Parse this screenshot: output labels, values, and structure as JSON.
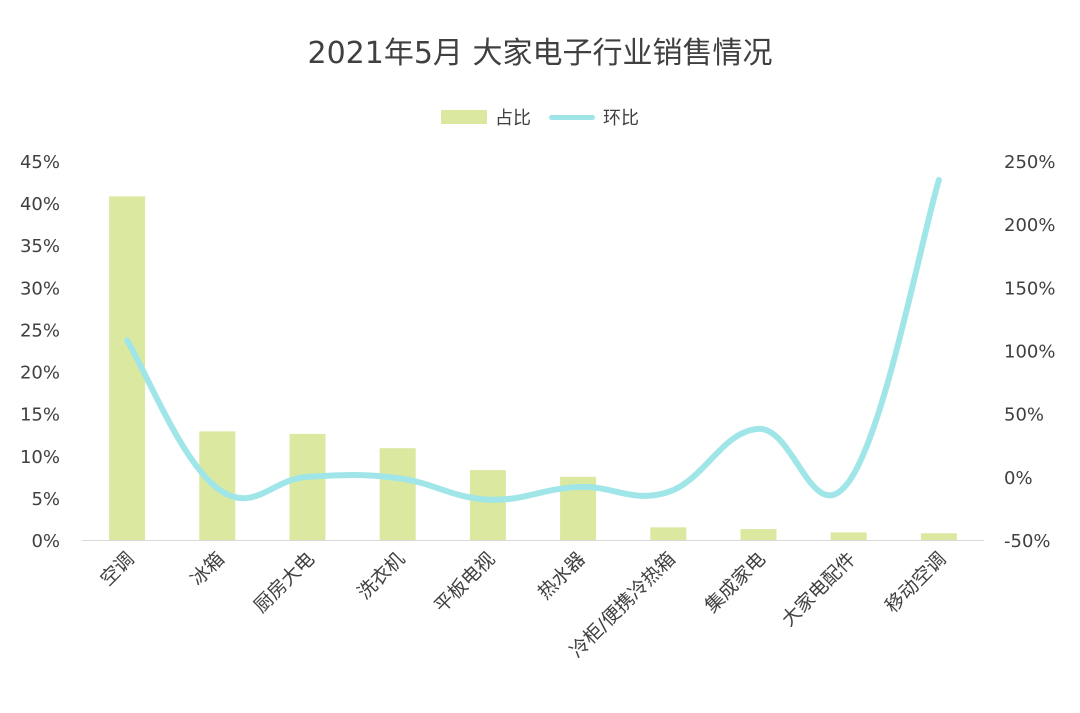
{
  "chart_data": {
    "type": "bar",
    "title": "2021年5月 大家电子行业销售情况",
    "categories": [
      "空调",
      "冰箱",
      "厨房大电",
      "洗衣机",
      "平板电视",
      "热水器",
      "冷柜/便携冷热箱",
      "集成家电",
      "大家电配件",
      "移动空调"
    ],
    "series": [
      {
        "name": "占比",
        "type": "bar",
        "axis": "left",
        "color": "#dbe8a0",
        "values": [
          0.408,
          0.129,
          0.126,
          0.109,
          0.083,
          0.075,
          0.015,
          0.013,
          0.009,
          0.008
        ]
      },
      {
        "name": "环比",
        "type": "line",
        "axis": "right",
        "color": "#a0e6e8",
        "values": [
          1.08,
          -0.09,
          0.0,
          -0.01,
          -0.18,
          -0.08,
          -0.12,
          0.38,
          -0.04,
          2.35
        ]
      }
    ],
    "y_left": {
      "ylim": [
        0,
        0.45
      ],
      "ticks": [
        0,
        0.05,
        0.1,
        0.15,
        0.2,
        0.25,
        0.3,
        0.35,
        0.4,
        0.45
      ],
      "tick_labels": [
        "0%",
        "5%",
        "10%",
        "15%",
        "20%",
        "25%",
        "30%",
        "35%",
        "40%",
        "45%"
      ]
    },
    "y_right": {
      "ylim": [
        -0.5,
        2.5
      ],
      "ticks": [
        -0.5,
        0,
        0.5,
        1.0,
        1.5,
        2.0,
        2.5
      ],
      "tick_labels": [
        "-50%",
        "0%",
        "50%",
        "100%",
        "150%",
        "200%",
        "250%"
      ]
    },
    "grid": false,
    "legend": "top-center"
  }
}
